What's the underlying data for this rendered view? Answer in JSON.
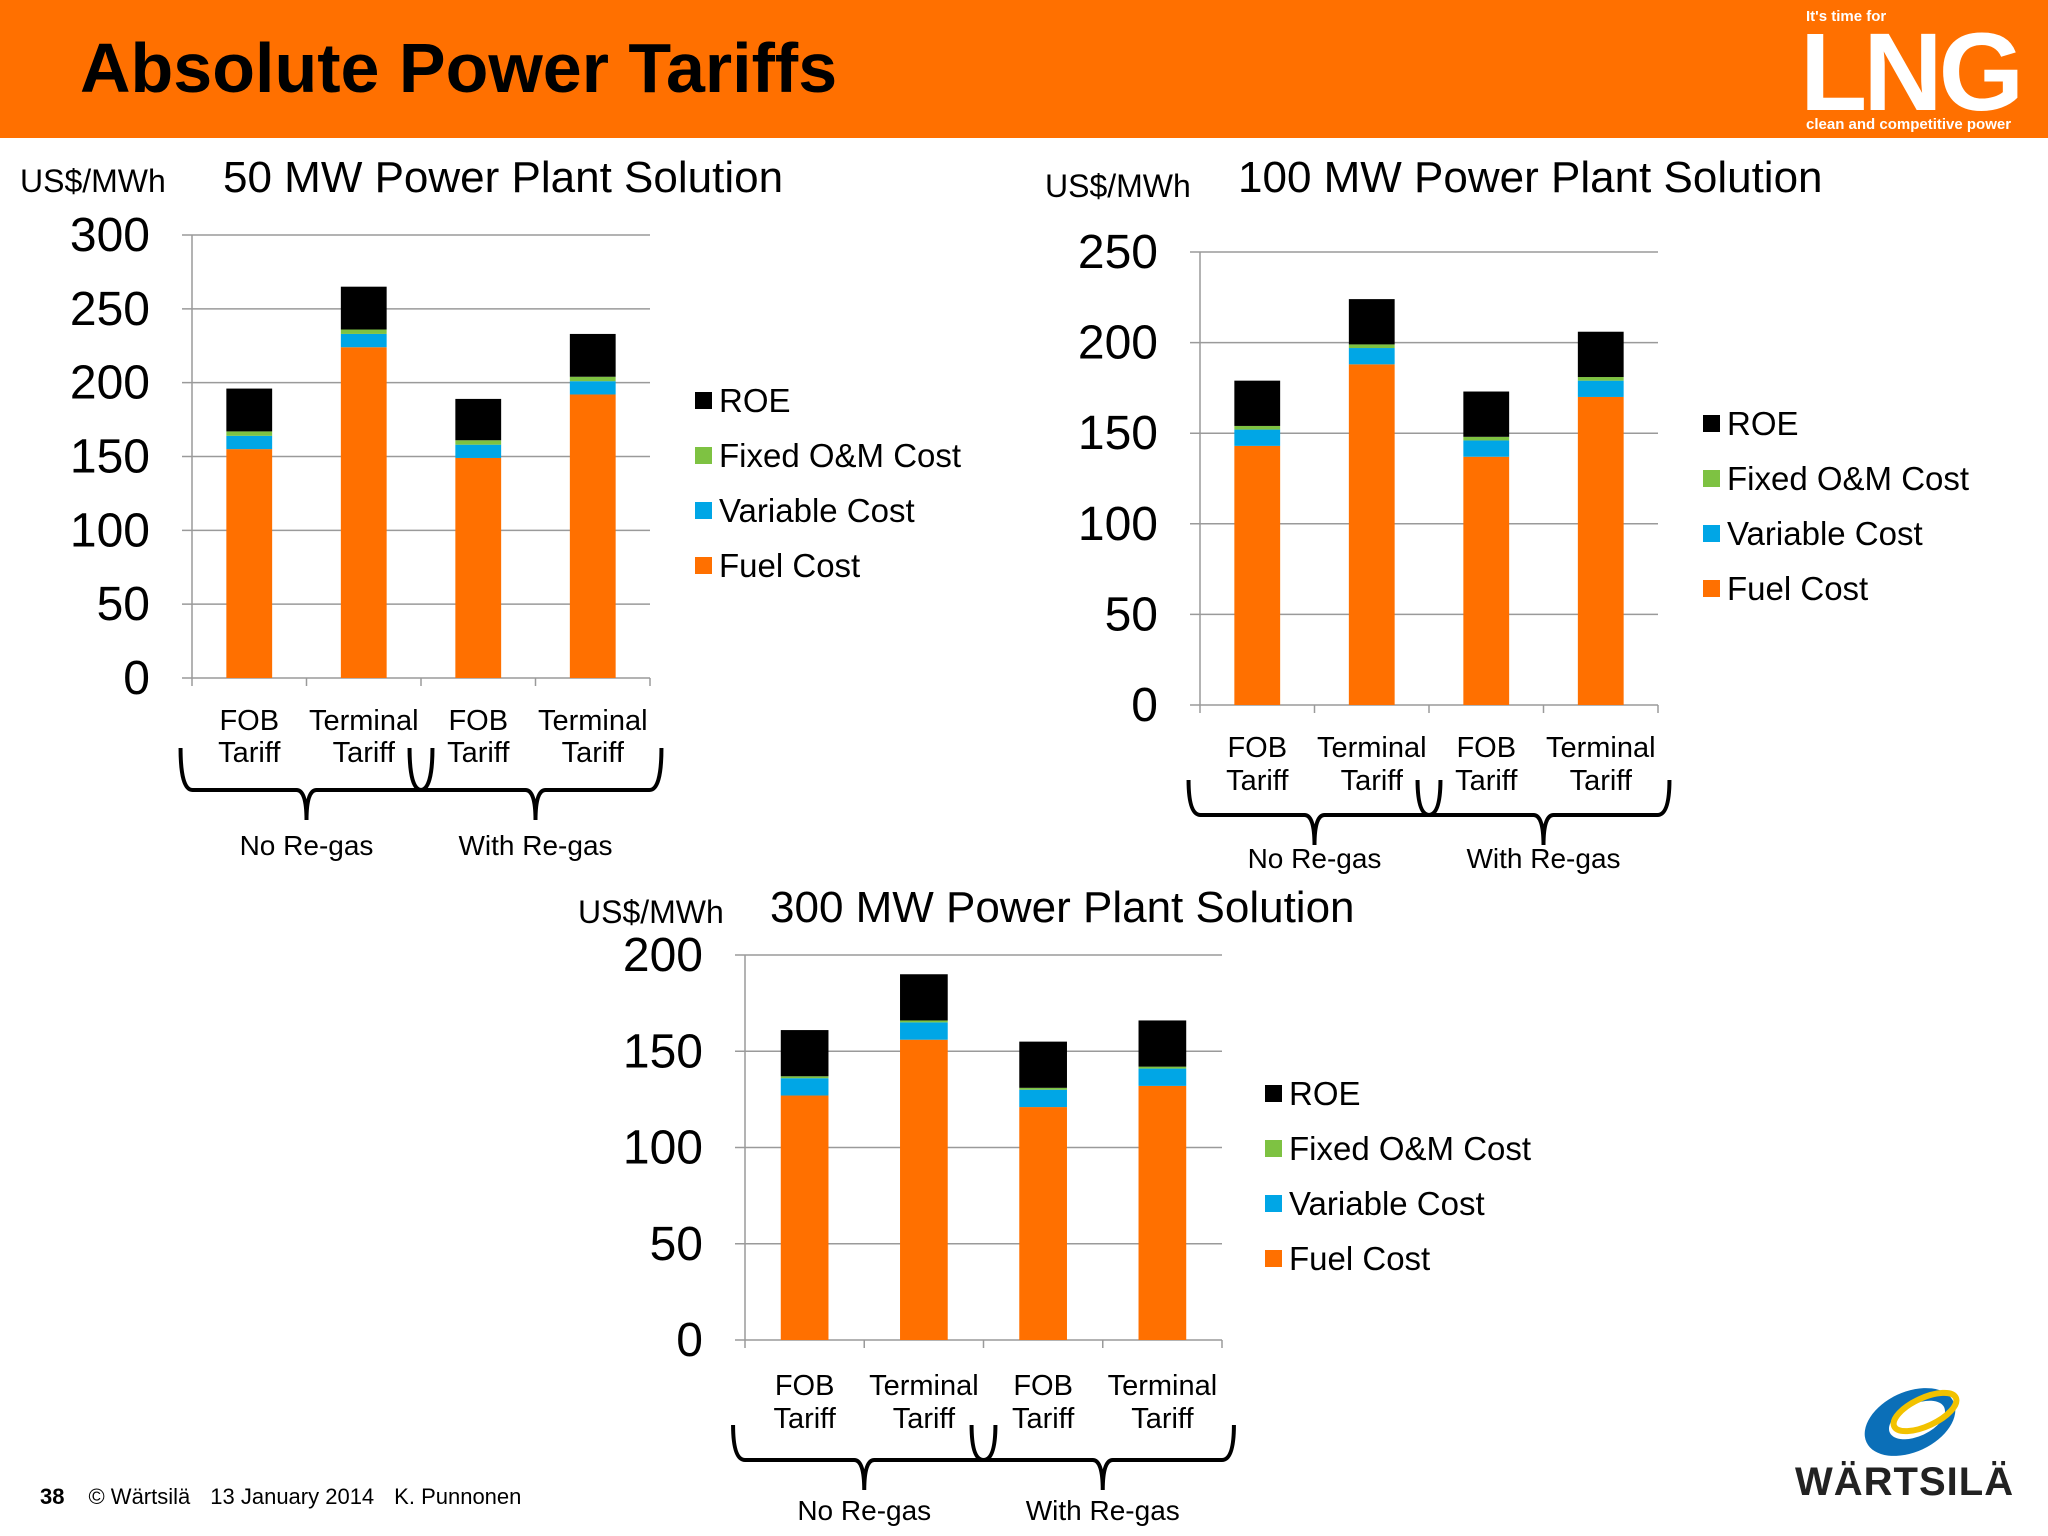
{
  "slide": {
    "title": "Absolute Power Tariffs",
    "logo": {
      "tagline_top": "It's time for",
      "wordmark": "LNG",
      "tagline_bottom": "clean and competitive power"
    },
    "footer": {
      "page": "38",
      "copyright": "© Wärtsilä",
      "date": "13 January 2014",
      "author": "K. Punnonen"
    },
    "company_logo_text": "WÄRTSILÄ",
    "colors": {
      "header": "#ff7000",
      "ROE": "#000000",
      "Fixed O&M Cost": "#7ec242",
      "Variable Cost": "#00a6e6",
      "Fuel Cost": "#ff7000"
    }
  },
  "chart_data": [
    {
      "type": "bar",
      "stacked": true,
      "title": "50 MW Power Plant Solution",
      "ylabel": "US$/MWh",
      "ylim": [
        0,
        300
      ],
      "yticks": [
        0,
        50,
        100,
        150,
        200,
        250,
        300
      ],
      "categories": [
        [
          "FOB",
          "Tariff"
        ],
        [
          "Terminal",
          "Tariff"
        ],
        [
          "FOB",
          "Tariff"
        ],
        [
          "Terminal",
          "Tariff"
        ]
      ],
      "groups": [
        {
          "label": "No Re-gas",
          "span": [
            0,
            1
          ]
        },
        {
          "label": "With Re-gas",
          "span": [
            2,
            3
          ]
        }
      ],
      "legend": [
        "ROE",
        "Fixed O&M Cost",
        "Variable Cost",
        "Fuel Cost"
      ],
      "legend_position": "right",
      "grid": true,
      "series": [
        {
          "name": "Fuel Cost",
          "values": [
            155,
            224,
            149,
            192
          ]
        },
        {
          "name": "Variable Cost",
          "values": [
            9,
            9,
            9,
            9
          ]
        },
        {
          "name": "Fixed O&M Cost",
          "values": [
            3,
            3,
            3,
            3
          ]
        },
        {
          "name": "ROE",
          "values": [
            29,
            29,
            28,
            29
          ]
        }
      ]
    },
    {
      "type": "bar",
      "stacked": true,
      "title": "100 MW Power Plant Solution",
      "ylabel": "US$/MWh",
      "ylim": [
        0,
        250
      ],
      "yticks": [
        0,
        50,
        100,
        150,
        200,
        250
      ],
      "categories": [
        [
          "FOB",
          "Tariff"
        ],
        [
          "Terminal",
          "Tariff"
        ],
        [
          "FOB",
          "Tariff"
        ],
        [
          "Terminal",
          "Tariff"
        ]
      ],
      "groups": [
        {
          "label": "No Re-gas",
          "span": [
            0,
            1
          ]
        },
        {
          "label": "With Re-gas",
          "span": [
            2,
            3
          ]
        }
      ],
      "legend": [
        "ROE",
        "Fixed O&M Cost",
        "Variable Cost",
        "Fuel Cost"
      ],
      "legend_position": "right",
      "grid": true,
      "series": [
        {
          "name": "Fuel Cost",
          "values": [
            143,
            188,
            137,
            170
          ]
        },
        {
          "name": "Variable Cost",
          "values": [
            9,
            9,
            9,
            9
          ]
        },
        {
          "name": "Fixed O&M Cost",
          "values": [
            2,
            2,
            2,
            2
          ]
        },
        {
          "name": "ROE",
          "values": [
            25,
            25,
            25,
            25
          ]
        }
      ]
    },
    {
      "type": "bar",
      "stacked": true,
      "title": "300 MW Power Plant Solution",
      "ylabel": "US$/MWh",
      "ylim": [
        0,
        200
      ],
      "yticks": [
        0,
        50,
        100,
        150,
        200
      ],
      "categories": [
        [
          "FOB",
          "Tariff"
        ],
        [
          "Terminal",
          "Tariff"
        ],
        [
          "FOB",
          "Tariff"
        ],
        [
          "Terminal",
          "Tariff"
        ]
      ],
      "groups": [
        {
          "label": "No Re-gas",
          "span": [
            0,
            1
          ]
        },
        {
          "label": "With Re-gas",
          "span": [
            2,
            3
          ]
        }
      ],
      "legend": [
        "ROE",
        "Fixed O&M Cost",
        "Variable Cost",
        "Fuel Cost"
      ],
      "legend_position": "right",
      "grid": true,
      "series": [
        {
          "name": "Fuel Cost",
          "values": [
            127,
            156,
            121,
            132
          ]
        },
        {
          "name": "Variable Cost",
          "values": [
            9,
            9,
            9,
            9
          ]
        },
        {
          "name": "Fixed O&M Cost",
          "values": [
            1,
            1,
            1,
            1
          ]
        },
        {
          "name": "ROE",
          "values": [
            24,
            24,
            24,
            24
          ]
        }
      ]
    }
  ]
}
